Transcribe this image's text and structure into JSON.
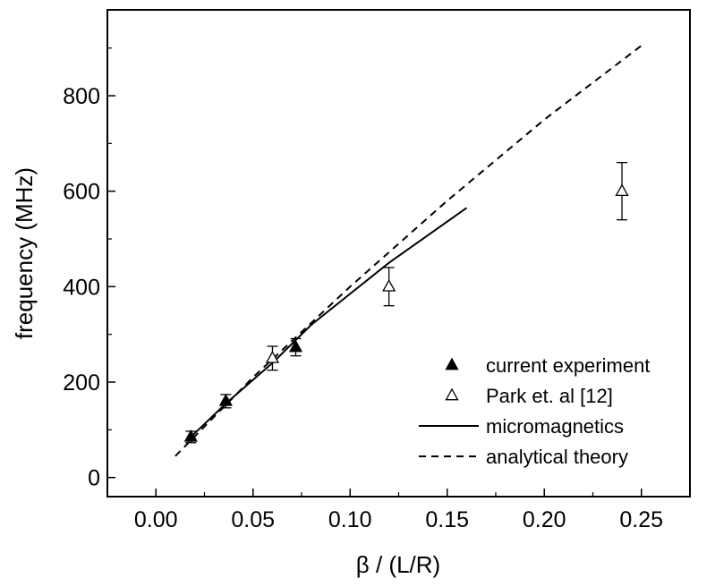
{
  "chart_data": {
    "type": "scatter",
    "title": "",
    "xlabel": "β / (L/R)",
    "ylabel": "frequency (MHz)",
    "xlim": [
      -0.025,
      0.275
    ],
    "ylim": [
      -40,
      980
    ],
    "x_ticks": [
      0.0,
      0.05,
      0.1,
      0.15,
      0.2,
      0.25
    ],
    "x_tick_labels": [
      "0.00",
      "0.05",
      "0.10",
      "0.15",
      "0.20",
      "0.25"
    ],
    "y_ticks": [
      0,
      200,
      400,
      600,
      800
    ],
    "y_tick_labels": [
      "0",
      "200",
      "400",
      "600",
      "800"
    ],
    "grid": false,
    "legend_position": "lower-right",
    "series": [
      {
        "name": "current experiment",
        "kind": "points",
        "marker": "filled-triangle",
        "points": [
          {
            "x": 0.018,
            "y": 85,
            "err": 12
          },
          {
            "x": 0.036,
            "y": 160,
            "err": 14
          },
          {
            "x": 0.072,
            "y": 273,
            "err": 18
          }
        ]
      },
      {
        "name": "Park et. al [12]",
        "kind": "points",
        "marker": "open-triangle",
        "points": [
          {
            "x": 0.06,
            "y": 250,
            "err": 25
          },
          {
            "x": 0.12,
            "y": 400,
            "err": 40
          },
          {
            "x": 0.24,
            "y": 600,
            "err": 60
          }
        ]
      },
      {
        "name": "micromagnetics",
        "kind": "line",
        "dash": "solid",
        "x": [
          0.018,
          0.036,
          0.06,
          0.08,
          0.12,
          0.16
        ],
        "y": [
          85,
          155,
          240,
          320,
          450,
          565
        ]
      },
      {
        "name": "analytical theory",
        "kind": "line",
        "dash": "dashed",
        "x": [
          0.01,
          0.05,
          0.1,
          0.15,
          0.2,
          0.25
        ],
        "y": [
          45,
          210,
          400,
          580,
          750,
          905
        ]
      }
    ]
  }
}
